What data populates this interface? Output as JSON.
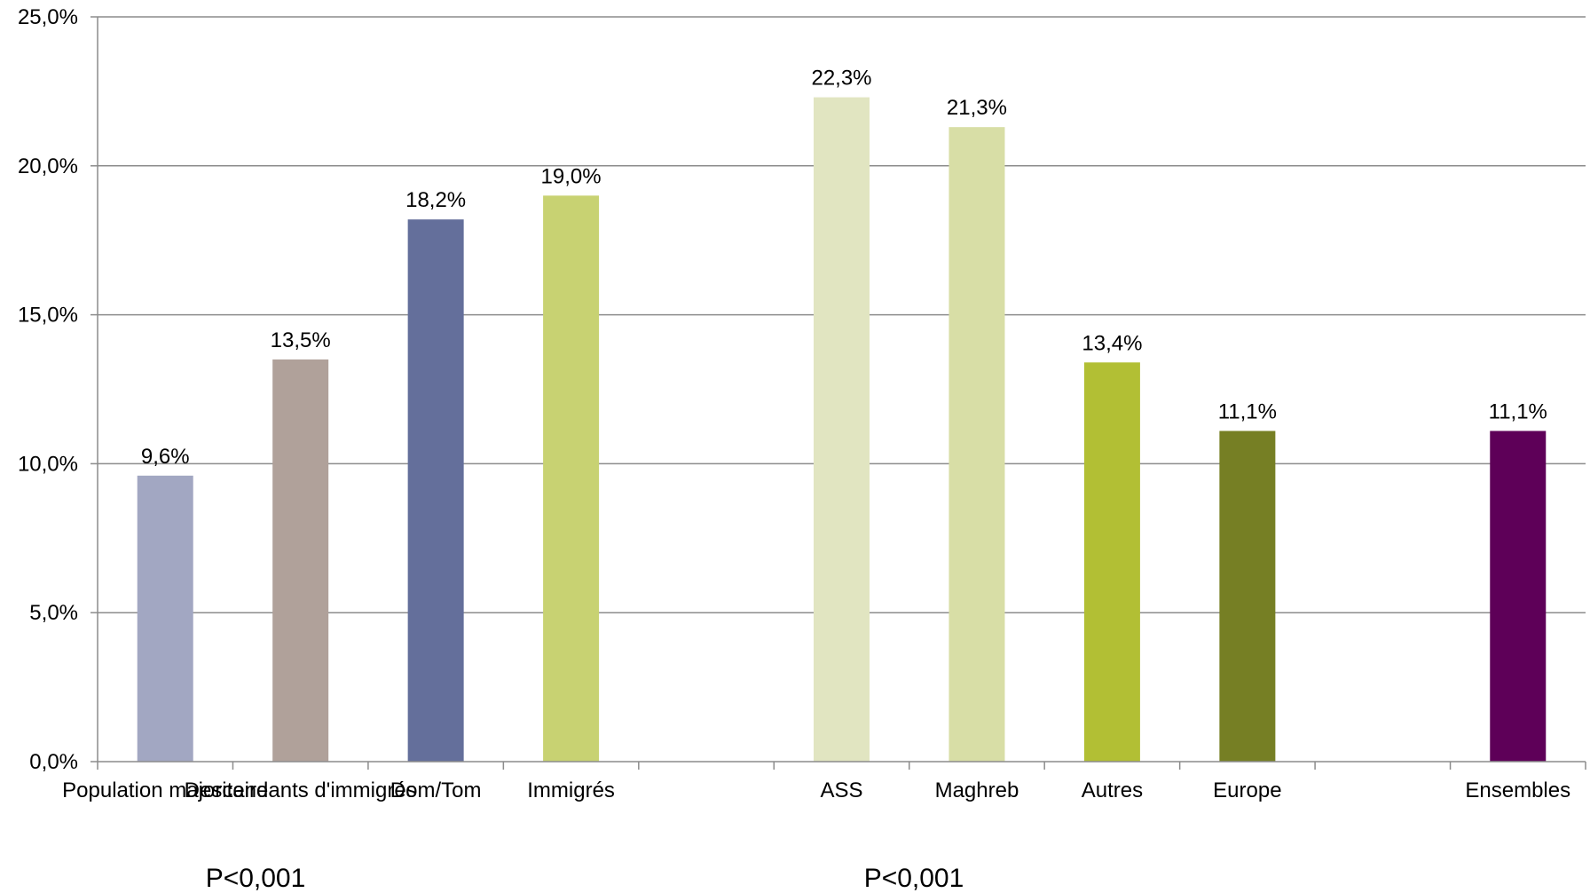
{
  "chart_data": {
    "type": "bar",
    "title": "",
    "xlabel": "",
    "ylabel": "",
    "ylim": [
      0,
      25
    ],
    "yticks": [
      0,
      5,
      10,
      15,
      20,
      25
    ],
    "ytick_labels": [
      "0,0%",
      "5,0%",
      "10,0%",
      "15,0%",
      "20,0%",
      "25,0%"
    ],
    "grid": true,
    "categories": [
      "Population majoritaire",
      "Descendants d'immigrés",
      "Dom/Tom",
      "Immigrés",
      "",
      "ASS",
      "Maghreb",
      "Autres",
      "Europe",
      "",
      "Ensembles"
    ],
    "values": [
      9.6,
      13.5,
      18.2,
      19.0,
      null,
      22.3,
      21.3,
      13.4,
      11.1,
      null,
      11.1
    ],
    "data_labels": [
      "9,6%",
      "13,5%",
      "18,2%",
      "19,0%",
      "",
      "22,3%",
      "21,3%",
      "13,4%",
      "11,1%",
      "",
      "11,1%"
    ],
    "colors": [
      "#a2a7c2",
      "#b0a19a",
      "#646f9b",
      "#c8d272",
      "",
      "#e1e5c1",
      "#d8dea6",
      "#b2bf34",
      "#767f24",
      "",
      "#5e0058"
    ],
    "annotations": [
      "P<0,001",
      "P<0,001"
    ]
  }
}
